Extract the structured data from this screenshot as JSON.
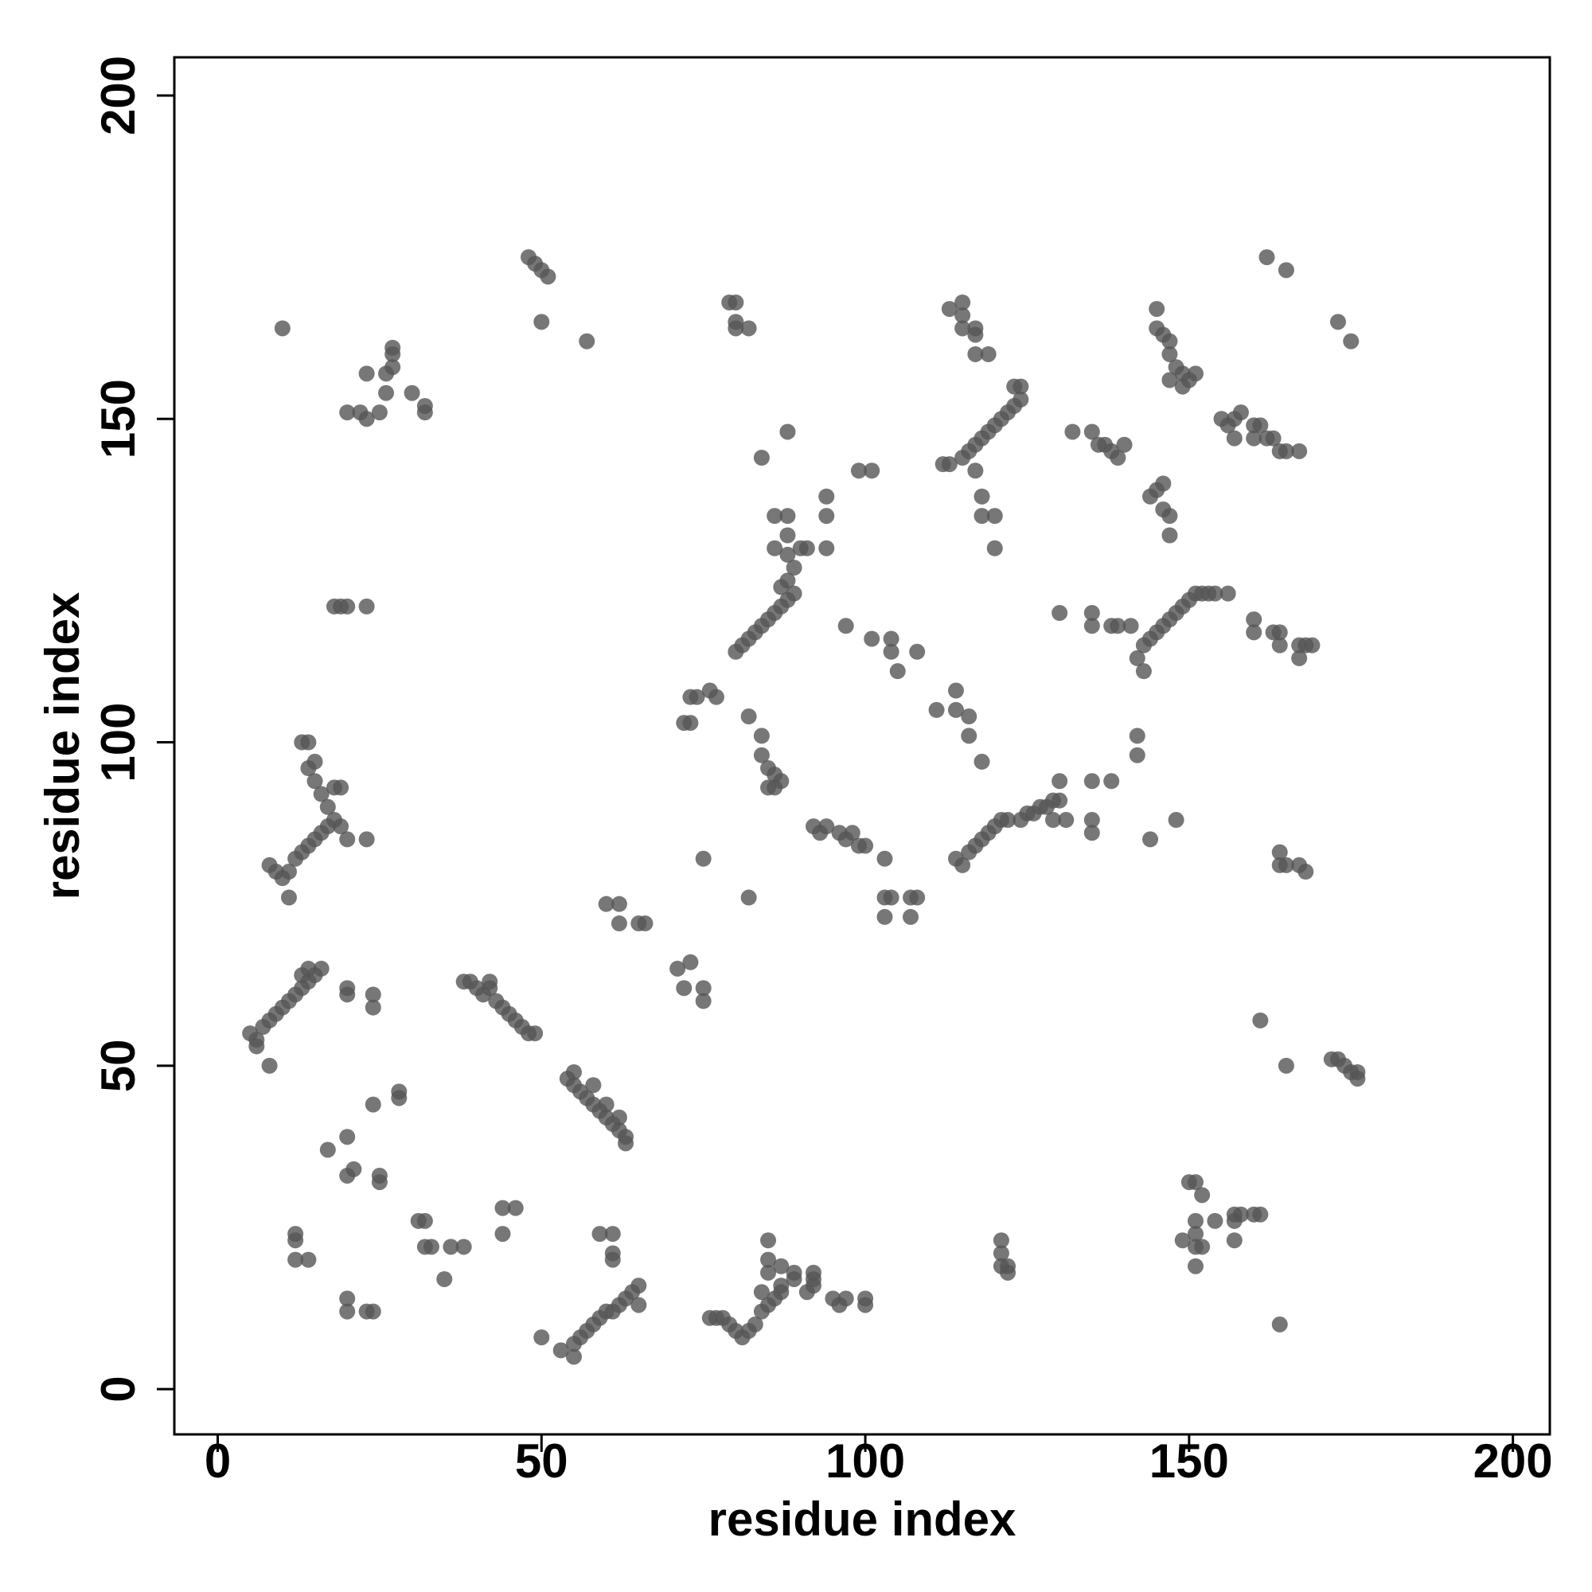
{
  "chart_data": {
    "type": "scatter",
    "xlabel": "residue index",
    "ylabel": "residue index",
    "xlim": [
      -6.7,
      205.7
    ],
    "ylim": [
      -7,
      205.9
    ],
    "xticks": [
      0,
      50,
      100,
      150,
      200
    ],
    "yticks": [
      0,
      50,
      100,
      150,
      200
    ],
    "color": "#555555",
    "grid": false,
    "x": [
      5,
      6,
      7,
      8,
      9,
      10,
      11,
      12,
      13,
      14,
      15,
      16,
      14,
      13,
      20,
      20,
      24,
      24,
      6,
      8,
      39,
      40,
      41,
      42,
      43,
      44,
      45,
      46,
      47,
      48,
      49,
      38,
      42,
      54,
      55,
      56,
      57,
      58,
      59,
      60,
      61,
      62,
      63,
      55,
      58,
      60,
      62,
      63,
      53,
      55,
      55,
      56,
      57,
      58,
      59,
      60,
      61,
      62,
      63,
      64,
      65,
      65,
      61,
      61,
      59,
      61,
      50,
      8,
      9,
      10,
      11,
      11,
      12,
      13,
      14,
      15,
      16,
      17,
      18,
      19,
      20,
      23,
      17,
      16,
      18,
      15,
      14,
      15,
      13,
      14,
      19,
      18,
      19,
      20,
      23,
      20,
      22,
      23,
      23,
      25,
      26,
      26,
      27,
      27,
      27,
      30,
      32,
      32,
      10,
      48,
      49,
      50,
      51,
      50,
      57,
      17,
      20,
      21,
      20,
      24,
      28,
      28,
      25,
      25,
      31,
      32,
      33,
      32,
      36,
      38,
      35,
      44,
      44,
      46,
      12,
      12,
      12,
      14,
      20,
      20,
      24,
      23,
      73,
      74,
      76,
      77,
      73,
      72,
      71,
      72,
      73,
      75,
      75,
      60,
      62,
      62,
      65,
      66,
      80,
      81,
      82,
      83,
      84,
      85,
      86,
      87,
      88,
      89,
      87,
      88,
      89,
      88,
      90,
      91,
      86,
      88,
      86,
      88,
      94,
      94,
      94,
      79,
      80,
      80,
      80,
      82,
      84,
      88,
      82,
      84,
      84,
      85,
      86,
      86,
      87,
      85,
      75,
      82,
      92,
      93,
      94,
      96,
      97,
      99,
      100,
      98,
      103,
      103,
      104,
      103,
      107,
      108,
      107,
      97,
      101,
      104,
      104,
      105,
      108,
      111,
      114,
      114,
      116,
      116,
      118,
      99,
      101,
      114,
      115,
      116,
      117,
      118,
      119,
      120,
      121,
      122,
      124,
      125,
      126,
      127,
      128,
      129,
      130,
      129,
      131,
      130,
      135,
      135,
      135,
      138,
      144,
      148,
      142,
      142,
      112,
      113,
      115,
      116,
      117,
      118,
      119,
      120,
      121,
      122,
      123,
      124,
      124,
      123,
      117,
      118,
      118,
      120,
      120,
      132,
      135,
      136,
      137,
      138,
      139,
      140,
      113,
      115,
      115,
      115,
      117,
      117,
      117,
      119,
      144,
      145,
      146,
      146,
      147,
      147,
      145,
      145,
      146,
      147,
      147,
      148,
      149,
      149,
      150,
      151,
      147,
      150,
      149,
      148,
      147,
      146,
      145,
      144,
      143,
      142,
      143,
      151,
      152,
      153,
      154,
      156,
      130,
      135,
      135,
      138,
      139,
      141,
      155,
      156,
      157,
      158,
      160,
      161,
      160,
      162,
      163,
      164,
      165,
      167,
      157,
      160,
      160,
      163,
      164,
      164,
      167,
      168,
      169,
      167,
      164,
      164,
      165,
      167,
      168,
      161,
      165,
      172,
      173,
      174,
      175,
      176,
      176,
      162,
      165,
      173,
      175,
      164,
      121,
      121,
      121,
      122,
      122,
      150,
      151,
      152,
      151,
      151,
      151,
      152,
      149,
      151,
      154,
      157,
      157,
      158,
      160,
      161,
      157,
      77,
      78,
      79,
      80,
      81,
      82,
      83,
      84,
      85,
      86,
      87,
      84,
      85,
      85,
      85,
      87,
      87,
      89,
      89,
      91,
      92,
      92,
      92,
      95,
      96,
      97,
      100,
      100,
      76
    ],
    "values": [
      55,
      54,
      56,
      57,
      58,
      59,
      60,
      61,
      62,
      63,
      64,
      65,
      65,
      64,
      62,
      61,
      59,
      61,
      53,
      50,
      63,
      62,
      61,
      62,
      60,
      59,
      58,
      57,
      56,
      55,
      55,
      63,
      63,
      48,
      47,
      46,
      45,
      44,
      43,
      42,
      41,
      40,
      39,
      49,
      47,
      44,
      42,
      38,
      6,
      5,
      7,
      8,
      9,
      10,
      11,
      12,
      12,
      13,
      14,
      15,
      16,
      13,
      20,
      21,
      24,
      24,
      8,
      81,
      80,
      79,
      80,
      76,
      82,
      83,
      84,
      85,
      86,
      87,
      88,
      87,
      85,
      85,
      90,
      92,
      93,
      94,
      96,
      97,
      100,
      100,
      93,
      121,
      121,
      121,
      121,
      151,
      151,
      150,
      157,
      151,
      154,
      157,
      158,
      160,
      161,
      154,
      152,
      151,
      164,
      175,
      174,
      173,
      172,
      165,
      162,
      37,
      39,
      34,
      33,
      44,
      45,
      46,
      33,
      32,
      26,
      26,
      22,
      22,
      22,
      22,
      17,
      24,
      28,
      28,
      24,
      23,
      20,
      20,
      14,
      12,
      12,
      12,
      107,
      107,
      108,
      107,
      103,
      103,
      65,
      62,
      66,
      62,
      60,
      75,
      75,
      72,
      72,
      72,
      114,
      115,
      116,
      117,
      118,
      119,
      120,
      121,
      122,
      123,
      124,
      125,
      127,
      129,
      130,
      130,
      130,
      132,
      135,
      135,
      130,
      135,
      138,
      168,
      168,
      165,
      164,
      164,
      144,
      148,
      104,
      101,
      98,
      96,
      95,
      93,
      94,
      93,
      82,
      76,
      87,
      86,
      87,
      86,
      85,
      84,
      84,
      86,
      82,
      76,
      76,
      73,
      76,
      76,
      73,
      118,
      116,
      116,
      114,
      111,
      114,
      105,
      108,
      105,
      104,
      101,
      97,
      142,
      142,
      82,
      81,
      83,
      84,
      85,
      86,
      87,
      88,
      88,
      88,
      89,
      89,
      90,
      90,
      91,
      91,
      88,
      88,
      94,
      94,
      88,
      86,
      94,
      85,
      88,
      98,
      101,
      143,
      143,
      144,
      145,
      146,
      147,
      148,
      149,
      150,
      151,
      152,
      153,
      155,
      155,
      142,
      138,
      135,
      135,
      130,
      148,
      148,
      146,
      146,
      145,
      144,
      146,
      167,
      168,
      166,
      164,
      164,
      163,
      160,
      160,
      138,
      139,
      140,
      136,
      135,
      132,
      167,
      164,
      163,
      162,
      160,
      158,
      157,
      155,
      156,
      157,
      156,
      122,
      121,
      120,
      119,
      118,
      117,
      116,
      115,
      113,
      111,
      123,
      123,
      123,
      123,
      123,
      120,
      120,
      118,
      118,
      118,
      118,
      150,
      149,
      150,
      151,
      149,
      149,
      147,
      147,
      147,
      145,
      145,
      145,
      147,
      119,
      117,
      117,
      117,
      115,
      115,
      115,
      115,
      113,
      83,
      81,
      81,
      81,
      80,
      57,
      50,
      51,
      51,
      50,
      49,
      49,
      48,
      175,
      173,
      165,
      162,
      10,
      23,
      21,
      19,
      18,
      19,
      32,
      32,
      30,
      26,
      24,
      22,
      22,
      23,
      19,
      26,
      27,
      26,
      27,
      27,
      27,
      23,
      11,
      11,
      10,
      9,
      8,
      9,
      10,
      12,
      13,
      14,
      15,
      15,
      18,
      20,
      23,
      19,
      16,
      17,
      18,
      15,
      16,
      17,
      18,
      14,
      13,
      14,
      14,
      13,
      11
    ]
  }
}
